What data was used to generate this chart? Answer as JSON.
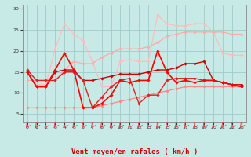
{
  "xlabel": "Vent moyen/en rafales ( km/h )",
  "xlim": [
    -0.5,
    23.5
  ],
  "ylim": [
    3,
    31
  ],
  "yticks": [
    5,
    10,
    15,
    20,
    25,
    30
  ],
  "xticks": [
    0,
    1,
    2,
    3,
    4,
    5,
    6,
    7,
    8,
    9,
    10,
    11,
    12,
    13,
    14,
    15,
    16,
    17,
    18,
    19,
    20,
    21,
    22,
    23
  ],
  "bg_color": "#c8eae6",
  "grid_color": "#a0ccc8",
  "series": [
    {
      "x": [
        0,
        1,
        2,
        3,
        4,
        5,
        6,
        7,
        8,
        9,
        10,
        11,
        12,
        13,
        14,
        15,
        16,
        17,
        18,
        19,
        20,
        21,
        22,
        23
      ],
      "y": [
        6.5,
        6.5,
        6.5,
        6.5,
        6.5,
        6.5,
        6.5,
        6.5,
        7.0,
        7.5,
        8.0,
        8.5,
        9.0,
        9.5,
        10.0,
        10.5,
        11.0,
        11.5,
        11.5,
        11.5,
        11.5,
        11.5,
        11.5,
        11.5
      ],
      "color": "#ff8888",
      "lw": 0.9,
      "marker": "D",
      "ms": 1.8,
      "zorder": 3
    },
    {
      "x": [
        0,
        1,
        2,
        3,
        4,
        5,
        6,
        7,
        8,
        9,
        10,
        11,
        12,
        13,
        14,
        15,
        16,
        17,
        18,
        19,
        20,
        21,
        22,
        23
      ],
      "y": [
        15.0,
        11.5,
        11.5,
        15.0,
        15.5,
        15.5,
        13.0,
        13.0,
        13.5,
        14.0,
        14.5,
        14.5,
        14.5,
        15.0,
        15.5,
        15.5,
        16.0,
        17.0,
        17.0,
        17.5,
        13.0,
        12.5,
        12.0,
        12.0
      ],
      "color": "#cc0000",
      "lw": 1.0,
      "marker": "D",
      "ms": 1.8,
      "zorder": 4
    },
    {
      "x": [
        0,
        1,
        2,
        3,
        4,
        5,
        6,
        7,
        8,
        9,
        10,
        11,
        12,
        13,
        14,
        15,
        16,
        17,
        18,
        19,
        20,
        21,
        22,
        23
      ],
      "y": [
        15.0,
        11.5,
        11.5,
        15.5,
        19.5,
        15.5,
        6.5,
        6.5,
        7.5,
        9.5,
        13.0,
        12.5,
        13.0,
        13.0,
        20.0,
        15.0,
        12.5,
        13.0,
        12.5,
        13.0,
        13.0,
        12.5,
        12.0,
        11.5
      ],
      "color": "#ff0000",
      "lw": 1.2,
      "marker": "D",
      "ms": 1.8,
      "zorder": 5
    },
    {
      "x": [
        0,
        1,
        2,
        3,
        4,
        5,
        6,
        7,
        8,
        9,
        10,
        11,
        12,
        13,
        14,
        15,
        16,
        17,
        18,
        19,
        20,
        21,
        22,
        23
      ],
      "y": [
        15.5,
        13.0,
        13.0,
        13.0,
        15.0,
        15.0,
        13.0,
        6.5,
        9.0,
        11.5,
        13.0,
        13.5,
        7.5,
        9.5,
        9.5,
        13.0,
        13.5,
        13.5,
        13.5,
        13.0,
        13.0,
        12.5,
        12.0,
        11.5
      ],
      "color": "#dd2222",
      "lw": 1.0,
      "marker": "D",
      "ms": 1.8,
      "zorder": 4
    },
    {
      "x": [
        0,
        1,
        2,
        3,
        4,
        5,
        6,
        7,
        8,
        9,
        10,
        11,
        12,
        13,
        14,
        15,
        16,
        17,
        18,
        19,
        20,
        21,
        22,
        23
      ],
      "y": [
        15.0,
        12.0,
        12.0,
        20.5,
        26.5,
        24.0,
        22.5,
        17.5,
        11.5,
        11.5,
        17.5,
        18.0,
        17.5,
        17.5,
        28.5,
        26.5,
        26.0,
        26.0,
        26.5,
        26.5,
        24.5,
        19.5,
        19.0,
        19.0
      ],
      "color": "#ffbbbb",
      "lw": 0.9,
      "marker": "D",
      "ms": 1.8,
      "zorder": 2
    },
    {
      "x": [
        0,
        1,
        2,
        3,
        4,
        5,
        6,
        7,
        8,
        9,
        10,
        11,
        12,
        13,
        14,
        15,
        16,
        17,
        18,
        19,
        20,
        21,
        22,
        23
      ],
      "y": [
        13.0,
        13.0,
        13.0,
        13.0,
        15.5,
        17.5,
        17.0,
        17.0,
        18.5,
        19.5,
        20.5,
        20.5,
        20.5,
        21.0,
        22.0,
        23.5,
        24.0,
        24.5,
        24.5,
        24.5,
        24.5,
        24.5,
        24.0,
        24.0
      ],
      "color": "#ffaaaa",
      "lw": 0.9,
      "marker": "D",
      "ms": 1.8,
      "zorder": 2
    }
  ],
  "arrow_color": "#dd4444",
  "xlabel_color": "#cc0000",
  "xlabel_fontsize": 6.5
}
